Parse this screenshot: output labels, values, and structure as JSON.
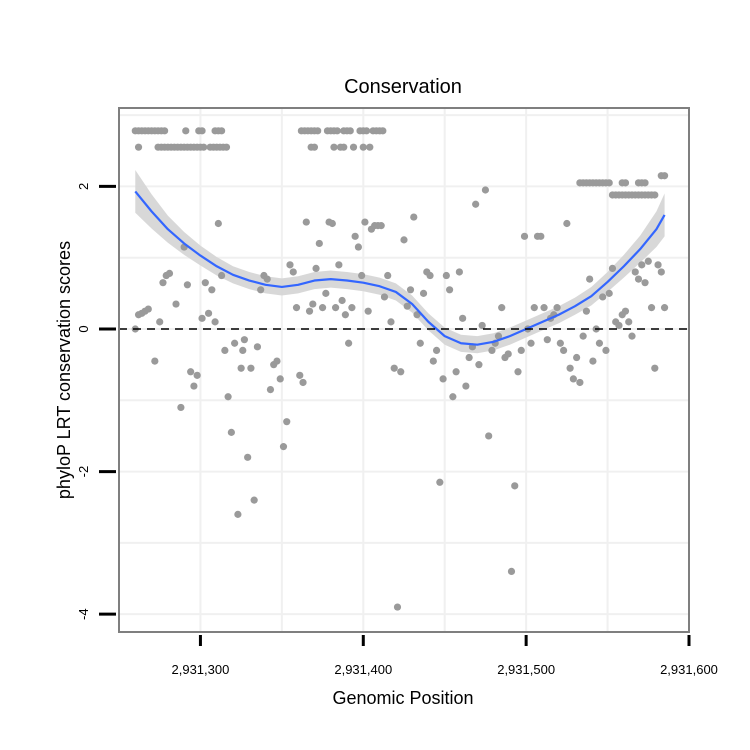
{
  "chart_data": {
    "type": "scatter",
    "title": "Conservation",
    "xlabel": "Genomic Position",
    "ylabel": "phyloP LRT conservation scores",
    "xlim": [
      2931250,
      2931600
    ],
    "ylim": [
      -4.25,
      3.1
    ],
    "x_ticks": [
      2931300,
      2931400,
      2931500,
      2931600
    ],
    "x_tick_labels": [
      "2,931,300",
      "2,931,400",
      "2,931,500",
      "2,931,600"
    ],
    "y_ticks": [
      -4,
      -2,
      0,
      2
    ],
    "y_tick_labels": [
      "-4",
      "-2",
      "0",
      "2"
    ],
    "reference_line": {
      "y": 0,
      "style": "dashed"
    },
    "grid": true,
    "legend": "none",
    "colors": {
      "points": "#9a9a9a",
      "smooth": "#3366ff",
      "ribbon": "#d4d4d4",
      "panel_border": "#7f7f7f",
      "grid": "#f0f0f0"
    },
    "points": [
      [
        2931260,
        2.78
      ],
      [
        2931262,
        2.78
      ],
      [
        2931264,
        2.78
      ],
      [
        2931266,
        2.78
      ],
      [
        2931268,
        2.78
      ],
      [
        2931270,
        2.78
      ],
      [
        2931272,
        2.78
      ],
      [
        2931274,
        2.78
      ],
      [
        2931276,
        2.78
      ],
      [
        2931278,
        2.78
      ],
      [
        2931291,
        2.78
      ],
      [
        2931299,
        2.78
      ],
      [
        2931301,
        2.78
      ],
      [
        2931309,
        2.78
      ],
      [
        2931311,
        2.78
      ],
      [
        2931313,
        2.78
      ],
      [
        2931262,
        2.55
      ],
      [
        2931274,
        2.55
      ],
      [
        2931276,
        2.55
      ],
      [
        2931278,
        2.55
      ],
      [
        2931280,
        2.55
      ],
      [
        2931282,
        2.55
      ],
      [
        2931284,
        2.55
      ],
      [
        2931286,
        2.55
      ],
      [
        2931288,
        2.55
      ],
      [
        2931290,
        2.55
      ],
      [
        2931292,
        2.55
      ],
      [
        2931294,
        2.55
      ],
      [
        2931296,
        2.55
      ],
      [
        2931298,
        2.55
      ],
      [
        2931300,
        2.55
      ],
      [
        2931302,
        2.55
      ],
      [
        2931306,
        2.55
      ],
      [
        2931308,
        2.55
      ],
      [
        2931310,
        2.55
      ],
      [
        2931312,
        2.55
      ],
      [
        2931314,
        2.55
      ],
      [
        2931316,
        2.55
      ],
      [
        2931362,
        2.78
      ],
      [
        2931364,
        2.78
      ],
      [
        2931366,
        2.78
      ],
      [
        2931368,
        2.78
      ],
      [
        2931370,
        2.78
      ],
      [
        2931372,
        2.78
      ],
      [
        2931378,
        2.78
      ],
      [
        2931380,
        2.78
      ],
      [
        2931382,
        2.78
      ],
      [
        2931384,
        2.78
      ],
      [
        2931388,
        2.78
      ],
      [
        2931390,
        2.78
      ],
      [
        2931392,
        2.78
      ],
      [
        2931398,
        2.78
      ],
      [
        2931400,
        2.78
      ],
      [
        2931402,
        2.78
      ],
      [
        2931406,
        2.78
      ],
      [
        2931408,
        2.78
      ],
      [
        2931410,
        2.78
      ],
      [
        2931412,
        2.78
      ],
      [
        2931368,
        2.55
      ],
      [
        2931370,
        2.55
      ],
      [
        2931382,
        2.55
      ],
      [
        2931386,
        2.55
      ],
      [
        2931388,
        2.55
      ],
      [
        2931394,
        2.55
      ],
      [
        2931400,
        2.55
      ],
      [
        2931404,
        2.55
      ],
      [
        2931533,
        2.05
      ],
      [
        2931535,
        2.05
      ],
      [
        2931537,
        2.05
      ],
      [
        2931539,
        2.05
      ],
      [
        2931541,
        2.05
      ],
      [
        2931543,
        2.05
      ],
      [
        2931545,
        2.05
      ],
      [
        2931547,
        2.05
      ],
      [
        2931549,
        2.05
      ],
      [
        2931551,
        2.05
      ],
      [
        2931559,
        2.05
      ],
      [
        2931561,
        2.05
      ],
      [
        2931569,
        2.05
      ],
      [
        2931571,
        2.05
      ],
      [
        2931573,
        2.05
      ],
      [
        2931583,
        2.15
      ],
      [
        2931585,
        2.15
      ],
      [
        2931553,
        1.88
      ],
      [
        2931555,
        1.88
      ],
      [
        2931557,
        1.88
      ],
      [
        2931559,
        1.88
      ],
      [
        2931561,
        1.88
      ],
      [
        2931563,
        1.88
      ],
      [
        2931565,
        1.88
      ],
      [
        2931567,
        1.88
      ],
      [
        2931569,
        1.88
      ],
      [
        2931571,
        1.88
      ],
      [
        2931573,
        1.88
      ],
      [
        2931575,
        1.88
      ],
      [
        2931577,
        1.88
      ],
      [
        2931579,
        1.88
      ],
      [
        2931260,
        0.0
      ],
      [
        2931262,
        0.2
      ],
      [
        2931264,
        0.22
      ],
      [
        2931266,
        0.25
      ],
      [
        2931268,
        0.28
      ],
      [
        2931272,
        -0.45
      ],
      [
        2931275,
        0.1
      ],
      [
        2931277,
        0.65
      ],
      [
        2931279,
        0.75
      ],
      [
        2931281,
        0.78
      ],
      [
        2931285,
        0.35
      ],
      [
        2931288,
        -1.1
      ],
      [
        2931290,
        1.15
      ],
      [
        2931292,
        0.62
      ],
      [
        2931294,
        -0.6
      ],
      [
        2931296,
        -0.8
      ],
      [
        2931298,
        -0.65
      ],
      [
        2931301,
        0.15
      ],
      [
        2931303,
        0.65
      ],
      [
        2931305,
        0.22
      ],
      [
        2931307,
        0.55
      ],
      [
        2931309,
        0.1
      ],
      [
        2931311,
        1.48
      ],
      [
        2931313,
        0.75
      ],
      [
        2931315,
        -0.3
      ],
      [
        2931317,
        -0.95
      ],
      [
        2931319,
        -1.45
      ],
      [
        2931321,
        -0.2
      ],
      [
        2931323,
        -2.6
      ],
      [
        2931325,
        -0.55
      ],
      [
        2931326,
        -0.3
      ],
      [
        2931327,
        -0.15
      ],
      [
        2931329,
        -1.8
      ],
      [
        2931331,
        -0.55
      ],
      [
        2931333,
        -2.4
      ],
      [
        2931335,
        -0.25
      ],
      [
        2931337,
        0.55
      ],
      [
        2931339,
        0.75
      ],
      [
        2931341,
        0.7
      ],
      [
        2931343,
        -0.85
      ],
      [
        2931345,
        -0.5
      ],
      [
        2931347,
        -0.45
      ],
      [
        2931349,
        -0.7
      ],
      [
        2931351,
        -1.65
      ],
      [
        2931353,
        -1.3
      ],
      [
        2931355,
        0.9
      ],
      [
        2931357,
        0.8
      ],
      [
        2931359,
        0.3
      ],
      [
        2931361,
        -0.65
      ],
      [
        2931363,
        -0.75
      ],
      [
        2931365,
        1.5
      ],
      [
        2931367,
        0.25
      ],
      [
        2931369,
        0.35
      ],
      [
        2931371,
        0.85
      ],
      [
        2931373,
        1.2
      ],
      [
        2931375,
        0.3
      ],
      [
        2931377,
        0.5
      ],
      [
        2931379,
        1.5
      ],
      [
        2931381,
        1.48
      ],
      [
        2931383,
        0.3
      ],
      [
        2931385,
        0.9
      ],
      [
        2931387,
        0.4
      ],
      [
        2931389,
        0.2
      ],
      [
        2931391,
        -0.2
      ],
      [
        2931393,
        0.3
      ],
      [
        2931395,
        1.3
      ],
      [
        2931397,
        1.15
      ],
      [
        2931399,
        0.75
      ],
      [
        2931401,
        1.5
      ],
      [
        2931403,
        0.25
      ],
      [
        2931405,
        1.4
      ],
      [
        2931407,
        1.45
      ],
      [
        2931409,
        1.45
      ],
      [
        2931411,
        1.45
      ],
      [
        2931413,
        0.45
      ],
      [
        2931415,
        0.75
      ],
      [
        2931417,
        0.1
      ],
      [
        2931419,
        -0.55
      ],
      [
        2931421,
        -3.9
      ],
      [
        2931423,
        -0.6
      ],
      [
        2931425,
        1.25
      ],
      [
        2931427,
        0.32
      ],
      [
        2931429,
        0.55
      ],
      [
        2931431,
        1.57
      ],
      [
        2931433,
        0.2
      ],
      [
        2931435,
        -0.2
      ],
      [
        2931437,
        0.5
      ],
      [
        2931439,
        0.8
      ],
      [
        2931441,
        0.75
      ],
      [
        2931443,
        -0.45
      ],
      [
        2931445,
        -0.3
      ],
      [
        2931447,
        -2.15
      ],
      [
        2931449,
        -0.7
      ],
      [
        2931451,
        0.75
      ],
      [
        2931453,
        0.55
      ],
      [
        2931455,
        -0.95
      ],
      [
        2931457,
        -0.6
      ],
      [
        2931459,
        0.8
      ],
      [
        2931461,
        0.15
      ],
      [
        2931463,
        -0.8
      ],
      [
        2931465,
        -0.4
      ],
      [
        2931467,
        -0.25
      ],
      [
        2931469,
        1.75
      ],
      [
        2931471,
        -0.5
      ],
      [
        2931473,
        0.05
      ],
      [
        2931475,
        1.95
      ],
      [
        2931477,
        -1.5
      ],
      [
        2931479,
        -0.3
      ],
      [
        2931481,
        -0.2
      ],
      [
        2931483,
        -0.1
      ],
      [
        2931485,
        0.3
      ],
      [
        2931487,
        -0.4
      ],
      [
        2931489,
        -0.35
      ],
      [
        2931491,
        -3.4
      ],
      [
        2931493,
        -2.2
      ],
      [
        2931495,
        -0.6
      ],
      [
        2931497,
        -0.3
      ],
      [
        2931499,
        1.3
      ],
      [
        2931501,
        0.0
      ],
      [
        2931503,
        -0.2
      ],
      [
        2931505,
        0.3
      ],
      [
        2931507,
        1.3
      ],
      [
        2931509,
        1.3
      ],
      [
        2931511,
        0.3
      ],
      [
        2931513,
        -0.15
      ],
      [
        2931515,
        0.15
      ],
      [
        2931517,
        0.2
      ],
      [
        2931519,
        0.3
      ],
      [
        2931521,
        -0.2
      ],
      [
        2931523,
        -0.3
      ],
      [
        2931525,
        1.48
      ],
      [
        2931527,
        -0.55
      ],
      [
        2931529,
        -0.7
      ],
      [
        2931531,
        -0.4
      ],
      [
        2931533,
        -0.75
      ],
      [
        2931535,
        -0.1
      ],
      [
        2931537,
        0.25
      ],
      [
        2931539,
        0.7
      ],
      [
        2931541,
        -0.45
      ],
      [
        2931543,
        0.0
      ],
      [
        2931545,
        -0.2
      ],
      [
        2931547,
        0.45
      ],
      [
        2931549,
        -0.3
      ],
      [
        2931551,
        0.5
      ],
      [
        2931553,
        0.85
      ],
      [
        2931555,
        0.1
      ],
      [
        2931557,
        0.05
      ],
      [
        2931559,
        0.2
      ],
      [
        2931561,
        0.25
      ],
      [
        2931563,
        0.1
      ],
      [
        2931565,
        -0.1
      ],
      [
        2931567,
        0.8
      ],
      [
        2931569,
        0.7
      ],
      [
        2931571,
        0.9
      ],
      [
        2931573,
        0.65
      ],
      [
        2931575,
        0.95
      ],
      [
        2931577,
        0.3
      ],
      [
        2931579,
        -0.55
      ],
      [
        2931581,
        0.9
      ],
      [
        2931583,
        0.8
      ],
      [
        2931585,
        0.3
      ]
    ],
    "smooth_line": [
      [
        2931260,
        1.93
      ],
      [
        2931270,
        1.65
      ],
      [
        2931280,
        1.4
      ],
      [
        2931290,
        1.2
      ],
      [
        2931300,
        1.03
      ],
      [
        2931310,
        0.88
      ],
      [
        2931320,
        0.76
      ],
      [
        2931330,
        0.68
      ],
      [
        2931340,
        0.62
      ],
      [
        2931350,
        0.59
      ],
      [
        2931360,
        0.62
      ],
      [
        2931370,
        0.68
      ],
      [
        2931380,
        0.7
      ],
      [
        2931390,
        0.68
      ],
      [
        2931400,
        0.65
      ],
      [
        2931410,
        0.6
      ],
      [
        2931420,
        0.52
      ],
      [
        2931430,
        0.35
      ],
      [
        2931440,
        0.1
      ],
      [
        2931450,
        -0.1
      ],
      [
        2931460,
        -0.2
      ],
      [
        2931470,
        -0.22
      ],
      [
        2931480,
        -0.18
      ],
      [
        2931490,
        -0.1
      ],
      [
        2931500,
        0.0
      ],
      [
        2931510,
        0.1
      ],
      [
        2931520,
        0.2
      ],
      [
        2931530,
        0.32
      ],
      [
        2931540,
        0.46
      ],
      [
        2931550,
        0.66
      ],
      [
        2931560,
        0.88
      ],
      [
        2931570,
        1.12
      ],
      [
        2931580,
        1.4
      ],
      [
        2931585,
        1.6
      ]
    ],
    "ribbon_halfwidth": [
      0.3,
      0.24,
      0.19,
      0.16,
      0.14,
      0.13,
      0.12,
      0.12,
      0.12,
      0.12,
      0.12,
      0.12,
      0.12,
      0.12,
      0.12,
      0.12,
      0.12,
      0.12,
      0.12,
      0.12,
      0.12,
      0.12,
      0.12,
      0.12,
      0.12,
      0.12,
      0.12,
      0.12,
      0.13,
      0.14,
      0.16,
      0.19,
      0.25,
      0.3
    ]
  }
}
